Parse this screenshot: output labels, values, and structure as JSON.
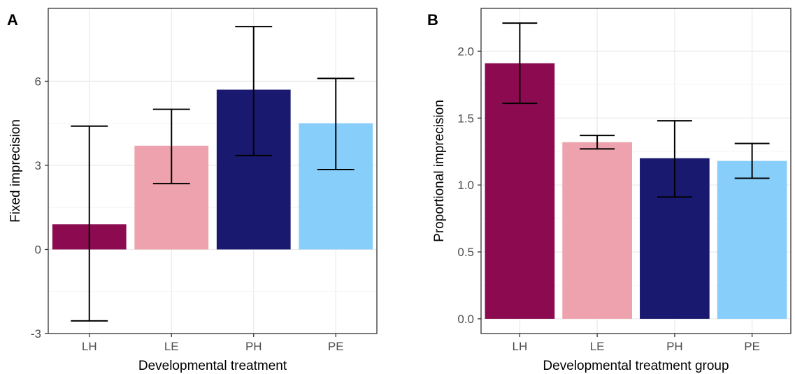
{
  "colors": {
    "LH": "#8b0a50",
    "LE": "#eea2ad",
    "PH": "#191970",
    "PE": "#87cefa",
    "grid_major": "#ebebeb",
    "grid_minor": "#f5f5f5",
    "error_bar": "#000000",
    "panel_border": "#333333"
  },
  "chart_data": [
    {
      "panel_label": "A",
      "type": "bar",
      "categories": [
        "LH",
        "LE",
        "PH",
        "PE"
      ],
      "values": [
        0.9,
        3.7,
        5.7,
        4.5
      ],
      "error_low": [
        -2.55,
        2.35,
        3.35,
        2.85
      ],
      "error_high": [
        4.4,
        5.0,
        7.95,
        6.1
      ],
      "xlabel": "Developmental treatment",
      "ylabel": "Fixed imprecision",
      "ylim": [
        -3.0,
        8.6
      ],
      "yticks": [
        -3,
        0,
        3,
        6
      ],
      "ytick_labels": [
        "-3",
        "0",
        "3",
        "6"
      ],
      "grid": true,
      "legend": "none"
    },
    {
      "panel_label": "B",
      "type": "bar",
      "categories": [
        "LH",
        "LE",
        "PH",
        "PE"
      ],
      "values": [
        1.91,
        1.32,
        1.2,
        1.18
      ],
      "error_low": [
        1.61,
        1.27,
        0.91,
        1.05
      ],
      "error_high": [
        2.21,
        1.37,
        1.48,
        1.31
      ],
      "xlabel": "Developmental treatment group",
      "ylabel": "Proportional imprecision",
      "ylim": [
        -0.11,
        2.32
      ],
      "yticks": [
        0.0,
        0.5,
        1.0,
        1.5,
        2.0
      ],
      "ytick_labels": [
        "0.0",
        "0.5",
        "1.0",
        "1.5",
        "2.0"
      ],
      "grid": true,
      "legend": "none"
    }
  ]
}
